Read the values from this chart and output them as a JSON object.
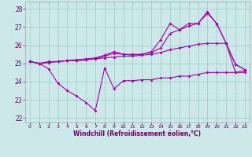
{
  "xlabel": "Windchill (Refroidissement éolien,°C)",
  "xlim": [
    -0.5,
    23.5
  ],
  "ylim": [
    21.75,
    28.4
  ],
  "yticks": [
    22,
    23,
    24,
    25,
    26,
    27,
    28
  ],
  "xticks": [
    0,
    1,
    2,
    3,
    4,
    5,
    6,
    7,
    8,
    9,
    10,
    11,
    12,
    13,
    14,
    15,
    16,
    17,
    18,
    19,
    20,
    21,
    22,
    23
  ],
  "bg_color": "#cce8e8",
  "line_color": "#aa00aa",
  "grid_color": "#99cccc",
  "lines": [
    {
      "x": [
        0,
        1,
        2,
        3,
        4,
        5,
        6,
        7,
        8,
        9,
        10,
        11,
        12,
        13,
        14,
        15,
        16,
        17,
        18,
        19,
        20,
        21,
        22,
        23
      ],
      "y": [
        25.1,
        25.0,
        24.7,
        23.9,
        23.5,
        23.2,
        22.85,
        22.4,
        24.75,
        23.6,
        24.05,
        24.05,
        24.1,
        24.1,
        24.2,
        24.2,
        24.3,
        24.3,
        24.4,
        24.5,
        24.5,
        24.5,
        24.5,
        24.5
      ]
    },
    {
      "x": [
        0,
        1,
        2,
        3,
        4,
        5,
        6,
        7,
        8,
        9,
        10,
        11,
        12,
        13,
        14,
        15,
        16,
        17,
        18,
        19,
        20,
        21,
        22,
        23
      ],
      "y": [
        25.1,
        25.0,
        25.1,
        25.1,
        25.15,
        25.15,
        25.2,
        25.25,
        25.3,
        25.35,
        25.4,
        25.4,
        25.45,
        25.5,
        25.6,
        25.75,
        25.85,
        25.95,
        26.05,
        26.1,
        26.1,
        26.1,
        24.5,
        24.6
      ]
    },
    {
      "x": [
        0,
        1,
        2,
        3,
        4,
        5,
        6,
        7,
        8,
        9,
        10,
        11,
        12,
        13,
        14,
        15,
        16,
        17,
        18,
        19,
        20,
        21,
        22,
        23
      ],
      "y": [
        25.1,
        25.0,
        25.05,
        25.1,
        25.15,
        25.2,
        25.25,
        25.3,
        25.45,
        25.65,
        25.5,
        25.45,
        25.5,
        25.65,
        26.3,
        27.2,
        26.85,
        27.2,
        27.2,
        27.85,
        27.15,
        26.1,
        24.95,
        24.65
      ]
    },
    {
      "x": [
        0,
        1,
        2,
        3,
        4,
        5,
        6,
        7,
        8,
        9,
        10,
        11,
        12,
        13,
        14,
        15,
        16,
        17,
        18,
        19,
        20,
        21,
        22,
        23
      ],
      "y": [
        25.1,
        25.0,
        25.05,
        25.1,
        25.15,
        25.15,
        25.2,
        25.25,
        25.4,
        25.55,
        25.5,
        25.5,
        25.5,
        25.6,
        25.85,
        26.65,
        26.85,
        27.05,
        27.2,
        27.75,
        27.2,
        26.1,
        24.95,
        24.65
      ]
    }
  ]
}
